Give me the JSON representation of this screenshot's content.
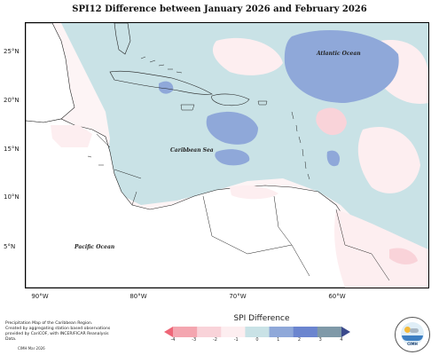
{
  "title": "SPI12 Difference between January 2026 and February 2026",
  "map": {
    "lat_labels": [
      "25°N",
      "20°N",
      "15°N",
      "10°N",
      "5°N"
    ],
    "lon_labels": [
      "90°W",
      "80°W",
      "70°W",
      "60°W"
    ],
    "ocean_labels": {
      "atlantic": "Atlantic Ocean",
      "caribbean": "Caribbean Sea",
      "pacific": "Pacific Ocean"
    }
  },
  "legend": {
    "title": "SPI Difference",
    "ticks": [
      "-4",
      "-3",
      "-2",
      "-1",
      "0",
      "1",
      "2",
      "3",
      "4"
    ],
    "colors": [
      "#ee6677",
      "#f4a6b0",
      "#f9d3d9",
      "#fdeef0",
      "#c9e2e6",
      "#8fa8d9",
      "#6b85cf",
      "#7f99a8",
      "#3b4a8c"
    ]
  },
  "notes": {
    "line1": "Precipitation Map of the Caribbean Region.",
    "line2": "Created by aggregating station based observations",
    "line3": "provided by CariCOF, with INCER/FICAR Reanalysis Data.",
    "credit": "CIMH Mar 2026"
  },
  "logo": {
    "abbr": "CIMH"
  }
}
